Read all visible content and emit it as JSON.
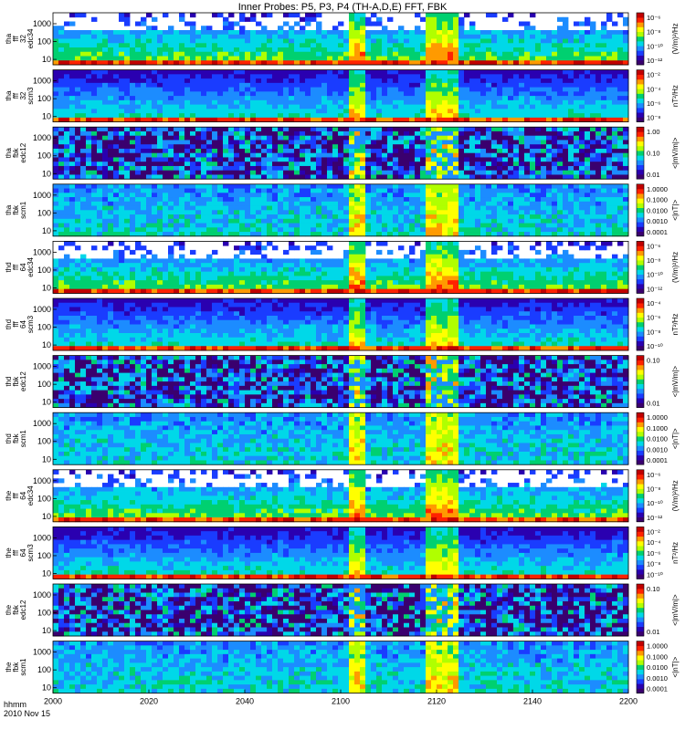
{
  "title": "Inner Probes: P5, P3, P4 (TH-A,D,E) FFT, FBK",
  "footer": {
    "line1": "hhmm",
    "line2": "2010 Nov 15"
  },
  "colors": {
    "scale": [
      "#3a006e",
      "#2a00b0",
      "#1a3cff",
      "#1c8cff",
      "#00d8e8",
      "#00d070",
      "#b0ff00",
      "#ffff00",
      "#ff9a00",
      "#ff2200",
      "#c00000"
    ],
    "background_white": "#ffffff",
    "axis": "#000000"
  },
  "chart_data": {
    "type": "heatmap",
    "x_axis": {
      "label": "hhmm",
      "range": [
        2000,
        2200
      ],
      "ticks": [
        "2000",
        "2020",
        "2040",
        "2100",
        "2120",
        "2140",
        "2200"
      ]
    },
    "panels": [
      {
        "id": "tha-fft-edc34",
        "ylabel": [
          "tha",
          "fff",
          "32",
          "edc34"
        ],
        "yticks": [
          "10",
          "100",
          "1000"
        ],
        "yrange": [
          5,
          4096
        ],
        "cbar_unit": "(V/m)²/Hz",
        "cbar_ticks": [
          "10⁻⁶",
          "10⁻⁸",
          "10⁻¹⁰",
          "10⁻¹²"
        ],
        "kind": "efield"
      },
      {
        "id": "tha-fft-scm3",
        "ylabel": [
          "tha",
          "fff",
          "32",
          "scm3"
        ],
        "yticks": [
          "10",
          "100",
          "1000"
        ],
        "yrange": [
          5,
          4096
        ],
        "cbar_unit": "nT²/Hz",
        "cbar_ticks": [
          "10⁻²",
          "10⁻⁴",
          "10⁻⁶",
          "10⁻⁸"
        ],
        "kind": "bfield"
      },
      {
        "id": "tha-fbk-edc12",
        "ylabel": [
          "tha",
          "fbk",
          "edc12"
        ],
        "yticks": [
          "10",
          "100",
          "1000"
        ],
        "yrange": [
          5,
          4096
        ],
        "cbar_unit": "<|mV/m|>",
        "cbar_ticks": [
          "1.00",
          "0.10",
          "0.01"
        ],
        "kind": "fbk_e"
      },
      {
        "id": "tha-fbk-scm1",
        "ylabel": [
          "tha",
          "fbk",
          "scm1"
        ],
        "yticks": [
          "10",
          "100",
          "1000"
        ],
        "yrange": [
          5,
          4096
        ],
        "cbar_unit": "<|nT|>",
        "cbar_ticks": [
          "1.0000",
          "0.1000",
          "0.0100",
          "0.0010",
          "0.0001"
        ],
        "kind": "fbk_b"
      },
      {
        "id": "thd-fff-edc34",
        "ylabel": [
          "thd",
          "fff",
          "64",
          "edc34"
        ],
        "yticks": [
          "10",
          "100",
          "1000"
        ],
        "yrange": [
          5,
          4096
        ],
        "cbar_unit": "(V/m)²/Hz",
        "cbar_ticks": [
          "10⁻⁶",
          "10⁻⁸",
          "10⁻¹⁰",
          "10⁻¹²"
        ],
        "kind": "efield"
      },
      {
        "id": "thd-fff-scm3",
        "ylabel": [
          "thd",
          "fff",
          "64",
          "scm3"
        ],
        "yticks": [
          "10",
          "100",
          "1000"
        ],
        "yrange": [
          5,
          4096
        ],
        "cbar_unit": "nT²/Hz",
        "cbar_ticks": [
          "10⁻⁴",
          "10⁻⁶",
          "10⁻⁸",
          "10⁻¹⁰"
        ],
        "kind": "bfield"
      },
      {
        "id": "thd-fbk-edc12",
        "ylabel": [
          "thd",
          "fbk",
          "edc12"
        ],
        "yticks": [
          "10",
          "100",
          "1000"
        ],
        "yrange": [
          5,
          4096
        ],
        "cbar_unit": "<|mV/m|>",
        "cbar_ticks": [
          "0.10",
          "0.01"
        ],
        "kind": "fbk_e"
      },
      {
        "id": "thd-fbk-scm1",
        "ylabel": [
          "thd",
          "fbk",
          "scm1"
        ],
        "yticks": [
          "10",
          "100",
          "1000"
        ],
        "yrange": [
          5,
          4096
        ],
        "cbar_unit": "<|nT|>",
        "cbar_ticks": [
          "1.0000",
          "0.1000",
          "0.0100",
          "0.0010",
          "0.0001"
        ],
        "kind": "fbk_b"
      },
      {
        "id": "the-fff-edc34",
        "ylabel": [
          "the",
          "fff",
          "64",
          "edc34"
        ],
        "yticks": [
          "10",
          "100",
          "1000"
        ],
        "yrange": [
          5,
          4096
        ],
        "cbar_unit": "(V/m)²/Hz",
        "cbar_ticks": [
          "10⁻⁶",
          "10⁻⁸",
          "10⁻¹⁰",
          "10⁻¹²"
        ],
        "kind": "efield"
      },
      {
        "id": "the-fff-scm3",
        "ylabel": [
          "the",
          "fff",
          "64",
          "scm3"
        ],
        "yticks": [
          "10",
          "100",
          "1000"
        ],
        "yrange": [
          5,
          4096
        ],
        "cbar_unit": "nT²/Hz",
        "cbar_ticks": [
          "10⁻²",
          "10⁻⁴",
          "10⁻⁶",
          "10⁻⁸",
          "10⁻¹⁰"
        ],
        "kind": "bfield"
      },
      {
        "id": "the-fbk-edc12",
        "ylabel": [
          "the",
          "fbk",
          "edc12"
        ],
        "yticks": [
          "10",
          "100",
          "1000"
        ],
        "yrange": [
          5,
          4096
        ],
        "cbar_unit": "<|mV/m|>",
        "cbar_ticks": [
          "0.10",
          "0.01"
        ],
        "kind": "fbk_e"
      },
      {
        "id": "the-fbk-scm1",
        "ylabel": [
          "the",
          "fbk",
          "scm1"
        ],
        "yticks": [
          "10",
          "100",
          "1000"
        ],
        "yrange": [
          5,
          4096
        ],
        "cbar_unit": "<|nT|>",
        "cbar_ticks": [
          "1.0000",
          "0.1000",
          "0.0100",
          "0.0010",
          "0.0001"
        ],
        "kind": "fbk_b"
      }
    ],
    "activity_intervals": [
      [
        2101,
        2104
      ],
      [
        2117,
        2124
      ]
    ],
    "yscale": "log",
    "grid": false
  }
}
